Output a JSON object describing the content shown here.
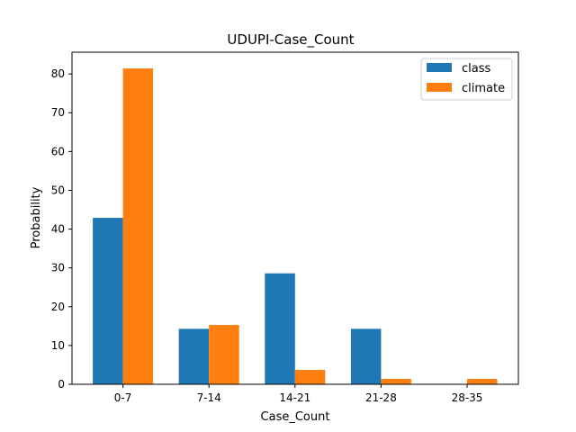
{
  "chart_data": {
    "type": "bar",
    "title": "UDUPI-Case_Count",
    "xlabel": "Case_Count",
    "ylabel": "Probability",
    "categories": [
      "0-7",
      "7-14",
      "14-21",
      "21-28",
      "28-35"
    ],
    "ylim": [
      0,
      85.6
    ],
    "yticks": [
      0,
      10,
      20,
      30,
      40,
      50,
      60,
      70,
      80
    ],
    "grid": false,
    "legend_position": "top-right",
    "series": [
      {
        "name": "class",
        "color": "#1f77b4",
        "values": [
          42.9,
          14.3,
          28.6,
          14.3,
          0
        ]
      },
      {
        "name": "climate",
        "color": "#ff7f0e",
        "values": [
          81.4,
          15.3,
          3.7,
          1.4,
          1.4
        ]
      }
    ]
  }
}
